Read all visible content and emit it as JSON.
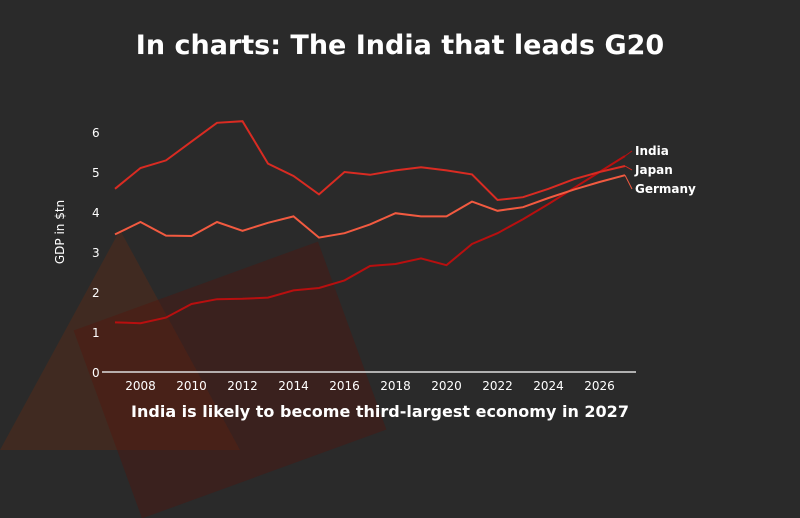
{
  "title": "In charts: The India that leads G20",
  "subtitle": "India is likely to become third-largest economy in 2027",
  "chart_data": {
    "type": "line",
    "title": "In charts: The India that leads G20",
    "xlabel": "",
    "ylabel": "GDP in $tn",
    "x": [
      2007,
      2008,
      2009,
      2010,
      2011,
      2012,
      2013,
      2014,
      2015,
      2016,
      2017,
      2018,
      2019,
      2020,
      2021,
      2022,
      2023,
      2024,
      2025,
      2026,
      2027
    ],
    "xticks": [
      "2008",
      "2010",
      "2012",
      "2014",
      "2016",
      "2018",
      "2020",
      "2022",
      "2024",
      "2026"
    ],
    "yticks": [
      "0",
      "1",
      "2",
      "3",
      "4",
      "5",
      "6"
    ],
    "ylim": [
      0,
      6.5
    ],
    "grid": false,
    "legend": "line-end labels right",
    "series": [
      {
        "name": "India",
        "color": "#b80f0f",
        "values": [
          1.24,
          1.22,
          1.36,
          1.7,
          1.82,
          1.83,
          1.86,
          2.04,
          2.1,
          2.29,
          2.65,
          2.7,
          2.84,
          2.67,
          3.2,
          3.47,
          3.82,
          4.2,
          4.6,
          5.0,
          5.4
        ]
      },
      {
        "name": "Japan",
        "color": "#d92b22",
        "values": [
          4.58,
          5.1,
          5.29,
          5.76,
          6.23,
          6.27,
          5.21,
          4.9,
          4.44,
          5.0,
          4.93,
          5.04,
          5.12,
          5.04,
          4.94,
          4.3,
          4.37,
          4.58,
          4.82,
          5.0,
          5.15
        ]
      },
      {
        "name": "Germany",
        "color": "#f25a40",
        "values": [
          3.44,
          3.75,
          3.41,
          3.4,
          3.75,
          3.53,
          3.73,
          3.89,
          3.36,
          3.47,
          3.69,
          3.97,
          3.89,
          3.89,
          4.26,
          4.03,
          4.12,
          4.35,
          4.56,
          4.75,
          4.92
        ]
      }
    ]
  }
}
